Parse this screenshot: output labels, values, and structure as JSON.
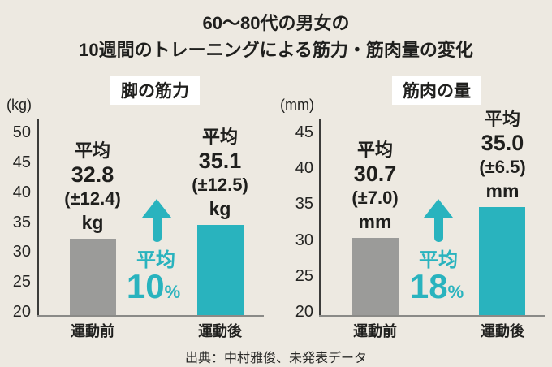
{
  "title": {
    "line1": "60〜80代の男女の",
    "line2": "10週間のトレーニングによる筋力・筋肉量の変化"
  },
  "source": "出典：中村雅俊、未発表データ",
  "colors": {
    "background": "#EDE9E1",
    "teal_accent": "#29B3BE",
    "gray_bar": "#9B9B99",
    "axis_line": "#3C3C3A",
    "baseline": "#8A8A87",
    "text": "#1F1F1D",
    "header_box": "#FFFFFF"
  },
  "chart_data": [
    {
      "type": "bar",
      "title": "脚の筋力",
      "unit_label": "(kg)",
      "unit": "kg",
      "ylim": [
        20,
        50
      ],
      "tick_step": 5,
      "grid": false,
      "legend": false,
      "categories": [
        "運動前",
        "運動後"
      ],
      "values": [
        32.8,
        35.1
      ],
      "errors": [
        12.4,
        12.5
      ],
      "bar_colors": [
        "#9B9B99",
        "#29B3BE"
      ],
      "bar_labels": [
        [
          "平均",
          "32.8",
          "(±12.4)",
          "kg"
        ],
        [
          "平均",
          "35.1",
          "(±12.5)",
          "kg"
        ]
      ],
      "change": {
        "label": "平均",
        "value": "10",
        "unit": "%"
      }
    },
    {
      "type": "bar",
      "title": "筋肉の量",
      "unit_label": "(mm)",
      "unit": "mm",
      "ylim": [
        20,
        45
      ],
      "tick_step": 5,
      "grid": false,
      "legend": false,
      "categories": [
        "運動前",
        "運動後"
      ],
      "values": [
        30.7,
        35.0
      ],
      "errors": [
        7.0,
        6.5
      ],
      "bar_colors": [
        "#9B9B99",
        "#29B3BE"
      ],
      "bar_labels": [
        [
          "平均",
          "30.7",
          "(±7.0)",
          "mm"
        ],
        [
          "平均",
          "35.0",
          "(±6.5)",
          "mm"
        ]
      ],
      "change": {
        "label": "平均",
        "value": "18",
        "unit": "%"
      }
    }
  ]
}
